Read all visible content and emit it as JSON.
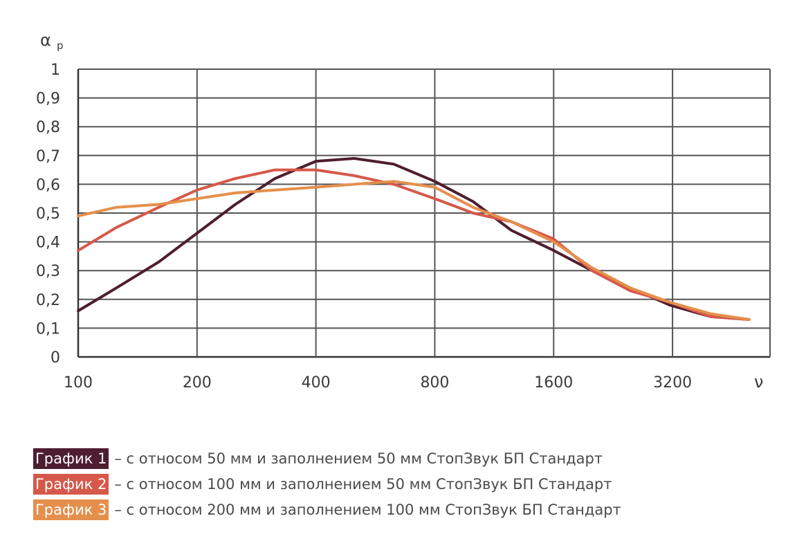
{
  "chart_data": {
    "type": "line",
    "ylabel": "α",
    "ylabel_sub": "p",
    "xlabel": "ν",
    "x_scale": "log2",
    "xlim": [
      100,
      5650
    ],
    "ylim": [
      0,
      1
    ],
    "grid": true,
    "x_ticks": [
      100,
      200,
      400,
      800,
      1600,
      3200
    ],
    "x_tick_labels": [
      "100",
      "200",
      "400",
      "800",
      "1600",
      "3200"
    ],
    "y_ticks": [
      0,
      0.1,
      0.2,
      0.3,
      0.4,
      0.5,
      0.6,
      0.7,
      0.8,
      0.9,
      1
    ],
    "y_tick_labels": [
      "0",
      "0,1",
      "0,2",
      "0,3",
      "0,4",
      "0,5",
      "0,6",
      "0,7",
      "0,8",
      "0,9",
      "1"
    ],
    "x": [
      100,
      125,
      160,
      200,
      250,
      315,
      400,
      500,
      630,
      800,
      1000,
      1250,
      1600,
      2000,
      2500,
      3150,
      4000,
      5000
    ],
    "series": [
      {
        "name": "График 1",
        "color": "#4e1d30",
        "values": [
          0.16,
          0.24,
          0.33,
          0.43,
          0.53,
          0.62,
          0.68,
          0.69,
          0.67,
          0.61,
          0.54,
          0.44,
          0.37,
          0.3,
          0.24,
          0.18,
          0.14,
          0.13
        ]
      },
      {
        "name": "График 2",
        "color": "#d6584a",
        "values": [
          0.37,
          0.45,
          0.52,
          0.58,
          0.62,
          0.65,
          0.65,
          0.63,
          0.6,
          0.55,
          0.5,
          0.47,
          0.41,
          0.3,
          0.23,
          0.19,
          0.14,
          0.13
        ]
      },
      {
        "name": "График 3",
        "color": "#e58f4c",
        "values": [
          0.49,
          0.52,
          0.53,
          0.55,
          0.57,
          0.58,
          0.59,
          0.6,
          0.61,
          0.59,
          0.52,
          0.47,
          0.4,
          0.31,
          0.24,
          0.19,
          0.15,
          0.13
        ]
      }
    ],
    "legend_placement": "bottom-left"
  },
  "legend": [
    {
      "label": "График 1",
      "color": "#4e1d30",
      "text": "– с относом 50 мм и заполнением 50 мм СтопЗвук БП Стандарт"
    },
    {
      "label": "График 2",
      "color": "#d6584a",
      "text": "– с относом 100 мм и заполнением 50 мм СтопЗвук БП Стандарт"
    },
    {
      "label": "График 3",
      "color": "#e58f4c",
      "text": "– с относом 200 мм и заполнением 100 мм СтопЗвук БП Стандарт"
    }
  ]
}
